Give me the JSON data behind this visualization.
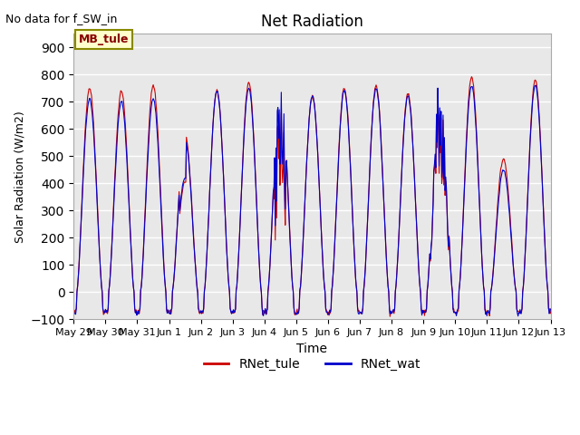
{
  "title": "Net Radiation",
  "subtitle": "No data for f_SW_in",
  "xlabel": "Time",
  "ylabel": "Solar Radiation (W/m2)",
  "ylim": [
    -100,
    950
  ],
  "yticks": [
    -100,
    0,
    100,
    200,
    300,
    400,
    500,
    600,
    700,
    800,
    900
  ],
  "xtick_labels": [
    "May 29",
    "May 30",
    "May 31",
    "Jun 1",
    "Jun 2",
    "Jun 3",
    "Jun 4",
    "Jun 5",
    "Jun 6",
    "Jun 7",
    "Jun 8",
    "Jun 9",
    "Jun 10",
    "Jun 11",
    "Jun 12",
    "Jun 13"
  ],
  "legend_label1": "RNet_tule",
  "legend_label2": "RNet_wat",
  "color1": "#cc0000",
  "color2": "#0000cc",
  "box_label": "MB_tule",
  "box_facecolor": "#ffffcc",
  "box_edgecolor": "#888800",
  "background_color": "#e8e8e8",
  "grid_color": "#ffffff",
  "n_days": 15,
  "points_per_day": 48,
  "day_peaks_tule": [
    750,
    740,
    760,
    580,
    740,
    770,
    760,
    720,
    750,
    760,
    730,
    780,
    790,
    490,
    780
  ],
  "day_peaks_wat": [
    710,
    700,
    710,
    560,
    740,
    750,
    760,
    720,
    740,
    750,
    720,
    760,
    760,
    450,
    760
  ],
  "night_val": -75,
  "figsize": [
    6.4,
    4.8
  ],
  "dpi": 100
}
